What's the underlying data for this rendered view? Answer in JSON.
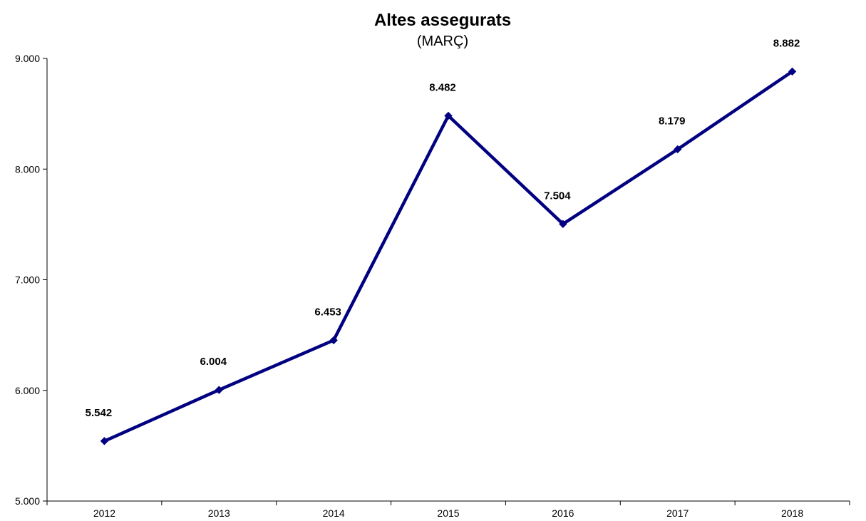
{
  "colors": {
    "series": "#000080",
    "axis": "#000000",
    "background": "#ffffff"
  },
  "chart_data": {
    "type": "line",
    "title": "Altes assegurats",
    "subtitle": "(MARÇ)",
    "xlabel": "",
    "ylabel": "",
    "categories": [
      "2012",
      "2013",
      "2014",
      "2015",
      "2016",
      "2017",
      "2018"
    ],
    "series": [
      {
        "values": [
          5542,
          6004,
          6453,
          8482,
          7504,
          8179,
          8882
        ],
        "labels": [
          "5.542",
          "6.004",
          "6.453",
          "8.482",
          "7.504",
          "8.179",
          "8.882"
        ],
        "marker": "diamond"
      }
    ],
    "ylim": [
      5000,
      9000
    ],
    "yticks": [
      5000,
      6000,
      7000,
      8000,
      9000
    ],
    "ytick_labels": [
      "5.000",
      "6.000",
      "7.000",
      "8.000",
      "9.000"
    ],
    "grid": false,
    "legend": "none"
  }
}
